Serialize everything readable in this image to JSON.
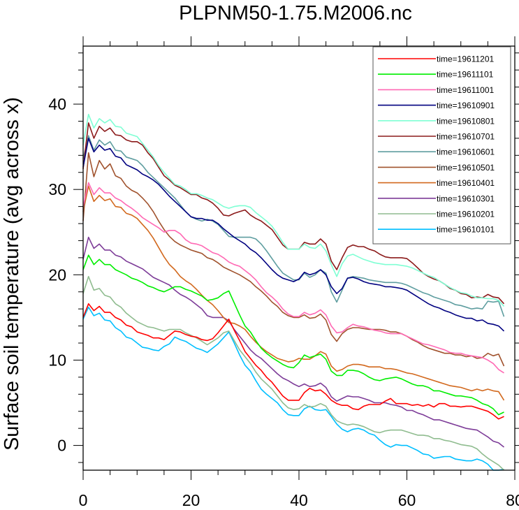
{
  "chart_data": {
    "type": "line",
    "title": "PLPNM50-1.75.M2006.nc",
    "xlabel": "",
    "ylabel": "Surface soil temperature (avg across x)",
    "xlim": [
      0,
      80
    ],
    "ylim": [
      -2.9,
      46.8
    ],
    "xticks": [
      0,
      20,
      40,
      60,
      80
    ],
    "xtick_labels": [
      "0",
      "20",
      "40",
      "60",
      "80"
    ],
    "yticks": [
      0,
      10,
      20,
      30,
      40
    ],
    "ytick_labels": [
      "0",
      "10",
      "20",
      "30",
      "40"
    ],
    "x_minor_step": 5,
    "y_minor_step": 2,
    "grid": false,
    "legend_position": "top-right",
    "x": [
      0,
      1,
      2,
      3,
      4,
      5,
      6,
      7,
      8,
      9,
      10,
      11,
      12,
      13,
      14,
      15,
      16,
      17,
      18,
      19,
      20,
      21,
      22,
      23,
      24,
      25,
      26,
      27,
      28,
      29,
      30,
      31,
      32,
      33,
      34,
      35,
      36,
      37,
      38,
      39,
      40,
      41,
      42,
      43,
      44,
      45,
      46,
      47,
      48,
      49,
      50,
      51,
      52,
      53,
      54,
      55,
      56,
      57,
      58,
      59,
      60,
      61,
      62,
      63,
      64,
      65,
      66,
      67,
      68,
      69,
      70,
      71,
      72,
      73,
      74,
      75,
      76,
      77,
      78
    ],
    "series": [
      {
        "name": "time=19611201",
        "color": "#ff0000",
        "values": [
          15.0,
          16.6,
          15.8,
          16.3,
          15.6,
          15.6,
          15.0,
          14.7,
          14.1,
          13.9,
          13.3,
          13.1,
          12.9,
          12.6,
          12.6,
          12.4,
          12.9,
          13.4,
          13.3,
          13.0,
          12.8,
          12.7,
          12.4,
          12.3,
          12.5,
          13.2,
          14.0,
          14.8,
          13.5,
          12.3,
          11.0,
          10.2,
          9.4,
          8.8,
          8.0,
          7.4,
          6.6,
          5.8,
          5.3,
          5.3,
          5.3,
          6.2,
          6.7,
          6.4,
          6.5,
          6.0,
          5.3,
          4.9,
          4.7,
          4.7,
          4.3,
          4.2,
          4.6,
          4.8,
          4.8,
          4.8,
          5.2,
          5.5,
          4.9,
          4.9,
          4.9,
          4.7,
          4.8,
          4.6,
          4.8,
          4.5,
          4.9,
          4.9,
          4.6,
          4.6,
          4.5,
          4.6,
          4.6,
          4.4,
          4.2,
          4.0,
          3.6,
          3.1,
          3.4
        ]
      },
      {
        "name": "time=19611101",
        "color": "#00ee00",
        "values": [
          20.6,
          22.3,
          21.2,
          21.8,
          21.2,
          21.2,
          20.6,
          20.3,
          20.0,
          19.6,
          19.4,
          19.1,
          18.7,
          18.5,
          18.2,
          18.0,
          18.3,
          18.6,
          18.6,
          18.3,
          18.1,
          17.8,
          17.5,
          17.0,
          17.1,
          17.3,
          17.8,
          18.1,
          16.7,
          15.3,
          14.0,
          13.3,
          12.3,
          11.4,
          10.8,
          10.3,
          9.9,
          9.5,
          9.2,
          9.1,
          9.7,
          10.6,
          10.3,
          10.5,
          10.7,
          10.1,
          8.7,
          8.2,
          8.2,
          8.8,
          8.8,
          8.7,
          8.4,
          8.0,
          7.7,
          7.6,
          7.8,
          7.9,
          8.0,
          7.8,
          7.5,
          7.2,
          7.0,
          7.0,
          6.8,
          6.4,
          6.4,
          6.2,
          6.0,
          5.8,
          5.8,
          5.7,
          5.6,
          5.3,
          4.9,
          4.7,
          4.3,
          3.6,
          3.9
        ]
      },
      {
        "name": "time=19611001",
        "color": "#ff69b4",
        "values": [
          28.0,
          30.8,
          29.4,
          30.2,
          29.6,
          29.6,
          29.0,
          28.7,
          28.2,
          27.8,
          27.3,
          26.7,
          26.3,
          25.9,
          25.5,
          25.0,
          25.2,
          25.2,
          24.8,
          24.1,
          23.7,
          23.6,
          23.4,
          23.0,
          22.6,
          22.4,
          22.0,
          21.5,
          21.2,
          21.0,
          20.5,
          20.0,
          19.4,
          18.6,
          17.9,
          17.4,
          16.8,
          16.0,
          15.4,
          15.1,
          15.1,
          15.6,
          15.3,
          15.5,
          15.9,
          15.3,
          14.0,
          13.2,
          13.3,
          13.8,
          14.2,
          14.0,
          13.9,
          13.7,
          13.5,
          13.4,
          13.2,
          13.1,
          13.1,
          13.1,
          12.8,
          12.5,
          12.2,
          11.9,
          11.8,
          11.6,
          11.4,
          11.2,
          10.9,
          10.8,
          10.8,
          10.6,
          10.5,
          10.4,
          10.3,
          10.0,
          9.6,
          8.9,
          8.5
        ]
      },
      {
        "name": "time=19610901",
        "color": "#000080",
        "values": [
          32.6,
          36.0,
          34.4,
          35.2,
          34.6,
          34.8,
          33.9,
          33.7,
          32.9,
          32.6,
          32.3,
          31.8,
          31.5,
          31.1,
          30.6,
          29.9,
          29.2,
          28.6,
          28.0,
          27.4,
          26.8,
          26.6,
          26.6,
          26.4,
          26.4,
          26.0,
          25.4,
          24.9,
          24.4,
          24.0,
          23.6,
          23.0,
          22.6,
          22.0,
          21.3,
          20.6,
          20.0,
          19.6,
          19.4,
          19.2,
          19.5,
          20.3,
          20.0,
          20.2,
          20.6,
          20.0,
          18.6,
          17.8,
          18.4,
          19.6,
          19.7,
          19.5,
          19.2,
          19.0,
          18.9,
          18.8,
          18.6,
          18.6,
          18.5,
          18.4,
          18.2,
          17.8,
          17.4,
          17.0,
          16.6,
          16.3,
          16.1,
          15.8,
          15.6,
          15.3,
          15.1,
          14.9,
          14.9,
          14.6,
          14.7,
          14.3,
          14.2,
          14.0,
          13.4
        ]
      },
      {
        "name": "time=19610801",
        "color": "#7fffd4",
        "values": [
          35.2,
          38.8,
          37.2,
          38.3,
          37.8,
          38.2,
          37.4,
          37.3,
          36.6,
          36.4,
          36.2,
          35.4,
          34.6,
          33.8,
          32.8,
          32.0,
          31.3,
          30.6,
          30.4,
          30.0,
          29.5,
          29.5,
          29.3,
          29.0,
          28.8,
          28.4,
          28.0,
          27.8,
          28.0,
          28.1,
          28.1,
          27.9,
          27.3,
          26.8,
          26.3,
          25.7,
          24.8,
          23.8,
          23.0,
          23.0,
          23.0,
          23.6,
          23.2,
          23.1,
          23.6,
          22.8,
          21.2,
          19.8,
          21.3,
          22.2,
          22.4,
          22.1,
          21.8,
          21.6,
          21.4,
          21.3,
          21.2,
          21.2,
          21.2,
          21.1,
          21.0,
          20.8,
          20.5,
          20.2,
          19.9,
          19.7,
          19.3,
          18.9,
          18.5,
          18.2,
          17.9,
          17.8,
          17.5,
          17.3,
          17.3,
          17.2,
          17.2,
          17.0,
          16.3
        ]
      },
      {
        "name": "time=19610701",
        "color": "#8b1a1a",
        "values": [
          32.4,
          37.8,
          36.0,
          37.4,
          36.8,
          37.2,
          36.4,
          36.3,
          35.8,
          35.6,
          35.6,
          35.2,
          34.3,
          33.6,
          32.6,
          31.6,
          31.1,
          30.5,
          30.2,
          29.8,
          29.4,
          29.4,
          29.0,
          28.8,
          28.4,
          27.8,
          27.0,
          26.9,
          27.2,
          27.4,
          27.6,
          27.0,
          26.6,
          26.3,
          25.8,
          25.3,
          24.4,
          23.5,
          23.0,
          23.0,
          23.0,
          23.8,
          23.6,
          23.6,
          24.2,
          23.6,
          21.6,
          20.6,
          22.0,
          23.2,
          23.5,
          23.3,
          23.3,
          23.0,
          22.8,
          22.4,
          22.1,
          22.0,
          22.0,
          22.0,
          21.9,
          21.4,
          20.8,
          20.2,
          19.8,
          19.5,
          19.3,
          18.9,
          18.4,
          18.2,
          17.8,
          17.7,
          17.3,
          17.4,
          17.3,
          17.7,
          17.4,
          17.3,
          16.6
        ]
      },
      {
        "name": "time=19610601",
        "color": "#5f9ea0",
        "values": [
          33.6,
          36.3,
          34.6,
          35.8,
          35.2,
          35.6,
          34.6,
          34.5,
          33.8,
          33.6,
          33.4,
          32.8,
          32.0,
          31.4,
          30.8,
          30.2,
          29.6,
          29.0,
          28.2,
          27.4,
          26.8,
          26.5,
          26.3,
          26.5,
          26.3,
          25.9,
          25.2,
          24.5,
          24.4,
          24.4,
          24.4,
          24.4,
          24.2,
          23.6,
          22.8,
          21.9,
          21.0,
          20.2,
          19.8,
          19.4,
          19.4,
          20.2,
          19.7,
          20.0,
          20.6,
          20.2,
          18.0,
          16.8,
          18.2,
          19.6,
          19.8,
          19.7,
          19.6,
          19.4,
          19.3,
          19.2,
          19.1,
          19.1,
          19.1,
          19.0,
          18.8,
          18.5,
          18.2,
          17.9,
          17.7,
          17.4,
          17.2,
          17.0,
          16.8,
          16.5,
          16.4,
          16.2,
          16.0,
          16.1,
          16.0,
          16.9,
          16.8,
          16.9,
          15.1
        ]
      },
      {
        "name": "time=19610501",
        "color": "#a0522d",
        "values": [
          26.3,
          34.3,
          31.5,
          33.4,
          32.4,
          33.0,
          31.6,
          31.3,
          30.4,
          29.9,
          29.6,
          29.0,
          28.3,
          27.4,
          26.3,
          25.3,
          24.5,
          23.9,
          23.5,
          23.2,
          22.9,
          22.7,
          22.5,
          22.0,
          21.8,
          21.4,
          20.9,
          20.6,
          20.3,
          20.0,
          19.6,
          19.2,
          18.6,
          18.1,
          17.5,
          16.8,
          16.3,
          15.6,
          15.2,
          15.0,
          15.0,
          15.3,
          14.9,
          15.0,
          15.4,
          14.7,
          13.0,
          12.2,
          13.1,
          13.6,
          13.8,
          13.8,
          13.7,
          13.6,
          13.6,
          13.6,
          13.5,
          13.3,
          13.3,
          13.1,
          12.8,
          12.4,
          12.1,
          11.7,
          11.4,
          11.2,
          11.0,
          10.8,
          10.8,
          10.6,
          10.6,
          10.4,
          10.5,
          10.2,
          10.3,
          10.8,
          10.5,
          10.7,
          9.3
        ]
      },
      {
        "name": "time=19610401",
        "color": "#d2691e",
        "values": [
          27.4,
          30.4,
          28.6,
          29.3,
          28.7,
          28.9,
          28.0,
          27.9,
          27.2,
          27.0,
          26.6,
          25.9,
          25.2,
          24.3,
          23.2,
          22.1,
          21.2,
          20.6,
          19.8,
          19.3,
          18.9,
          18.3,
          17.6,
          17.0,
          16.5,
          15.8,
          15.0,
          14.4,
          14.3,
          14.0,
          13.6,
          12.8,
          12.1,
          11.5,
          11.0,
          10.6,
          10.2,
          10.0,
          9.8,
          9.9,
          10.2,
          10.1,
          10.1,
          10.5,
          11.0,
          10.7,
          9.3,
          8.7,
          8.9,
          9.3,
          9.5,
          9.5,
          9.4,
          9.2,
          9.2,
          9.2,
          9.0,
          9.0,
          8.9,
          8.7,
          8.5,
          8.4,
          8.2,
          8.0,
          7.8,
          7.6,
          7.4,
          7.2,
          7.0,
          6.9,
          6.8,
          6.6,
          6.4,
          6.6,
          6.4,
          6.6,
          6.4,
          6.3,
          5.3
        ]
      },
      {
        "name": "time=19610301",
        "color": "#7d3c98",
        "values": [
          21.8,
          24.4,
          23.1,
          23.6,
          22.9,
          22.9,
          22.3,
          22.1,
          21.6,
          21.3,
          21.0,
          20.7,
          20.2,
          19.7,
          19.4,
          19.1,
          18.8,
          18.2,
          17.7,
          17.4,
          17.0,
          16.5,
          16.0,
          15.2,
          15.0,
          15.0,
          15.0,
          14.6,
          13.6,
          12.8,
          12.0,
          11.2,
          10.6,
          10.2,
          9.6,
          9.0,
          8.4,
          7.9,
          7.6,
          7.2,
          6.9,
          7.2,
          6.9,
          7.0,
          7.3,
          6.8,
          5.7,
          5.2,
          5.5,
          5.8,
          5.7,
          5.7,
          5.5,
          5.3,
          5.0,
          5.0,
          5.0,
          4.8,
          4.7,
          4.5,
          4.1,
          4.1,
          3.8,
          3.6,
          3.3,
          3.0,
          3.0,
          2.8,
          2.6,
          2.4,
          2.2,
          2.0,
          1.9,
          1.8,
          1.4,
          1.0,
          0.5,
          0.3,
          -0.2
        ]
      },
      {
        "name": "time=19610201",
        "color": "#8fbc8f",
        "values": [
          17.8,
          19.8,
          18.2,
          18.4,
          17.6,
          17.4,
          16.6,
          16.2,
          15.5,
          15.0,
          14.5,
          14.2,
          13.9,
          13.8,
          13.6,
          13.4,
          13.6,
          13.6,
          13.6,
          13.2,
          12.9,
          12.6,
          12.2,
          11.8,
          12.2,
          12.6,
          13.2,
          13.4,
          12.3,
          11.2,
          10.4,
          9.6,
          8.6,
          7.8,
          7.2,
          6.6,
          5.8,
          5.0,
          4.4,
          4.2,
          4.3,
          4.8,
          4.5,
          4.6,
          4.9,
          4.6,
          3.6,
          2.9,
          2.6,
          2.4,
          2.5,
          2.4,
          2.2,
          1.9,
          1.6,
          1.5,
          1.7,
          1.8,
          1.8,
          1.8,
          1.6,
          1.4,
          1.2,
          1.2,
          1.1,
          0.8,
          0.8,
          0.6,
          0.5,
          0.3,
          0.1,
          0.0,
          -0.1,
          -0.4,
          -1.0,
          -1.5,
          -1.9,
          -2.3,
          -2.9
        ]
      },
      {
        "name": "time=19610101",
        "color": "#00bfff",
        "values": [
          14.8,
          16.2,
          15.2,
          15.5,
          14.7,
          14.6,
          13.8,
          13.4,
          12.7,
          12.5,
          12.0,
          11.5,
          11.4,
          11.2,
          11.1,
          11.6,
          11.9,
          12.7,
          12.4,
          12.2,
          11.8,
          11.4,
          11.2,
          10.9,
          11.4,
          11.9,
          12.6,
          13.3,
          12.0,
          10.6,
          9.4,
          8.7,
          7.6,
          6.6,
          6.0,
          5.5,
          5.0,
          4.2,
          3.6,
          3.5,
          3.5,
          4.3,
          4.6,
          4.2,
          4.1,
          4.2,
          3.4,
          2.5,
          1.9,
          1.6,
          1.9,
          2.0,
          1.8,
          1.4,
          1.2,
          0.6,
          0.1,
          -0.2,
          0.1,
          0.0,
          0.0,
          -0.3,
          -0.6,
          -1.0,
          -1.1,
          -1.5,
          -1.4,
          -1.3,
          -1.3,
          -1.6,
          -1.7,
          -1.8,
          -1.8,
          -1.6,
          -1.8,
          -2.2,
          -2.9,
          -2.9,
          -2.8
        ]
      }
    ]
  }
}
